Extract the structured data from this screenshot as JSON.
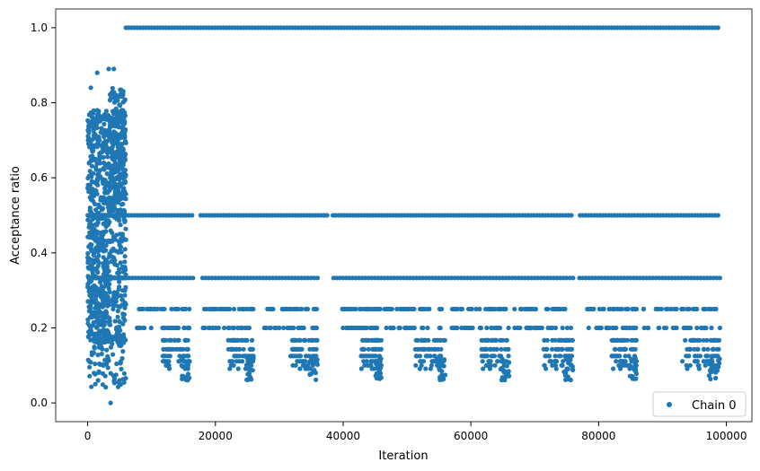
{
  "chart_data": {
    "type": "scatter",
    "title": "",
    "xlabel": "Iteration",
    "ylabel": "Acceptance ratio",
    "xlim": [
      -5000,
      104000
    ],
    "ylim": [
      -0.05,
      1.05
    ],
    "x_ticks": [
      0,
      20000,
      40000,
      60000,
      80000,
      100000
    ],
    "y_ticks": [
      0.0,
      0.2,
      0.4,
      0.6,
      0.8,
      1.0
    ],
    "grid": false,
    "legend_position": "bottom-right",
    "series": [
      {
        "name": "Chain 0",
        "color": "#1f77b4",
        "marker": "circle",
        "x_range": [
          0,
          99000
        ],
        "description_levels": [
          1.0,
          0.5,
          0.333,
          0.25,
          0.2,
          0.167,
          0.143,
          0.125,
          0.111,
          0.1
        ],
        "burn_in_end": 6000,
        "plateau_start": 6000,
        "sample_points": [
          [
            500,
            0.84
          ],
          [
            1500,
            0.88
          ],
          [
            3300,
            0.89
          ],
          [
            4100,
            0.89
          ],
          [
            3600,
            0.0
          ],
          [
            1200,
            0.05
          ],
          [
            2500,
            0.1
          ],
          [
            5000,
            0.06
          ],
          [
            800,
            0.35
          ],
          [
            4500,
            0.6
          ]
        ]
      }
    ]
  }
}
